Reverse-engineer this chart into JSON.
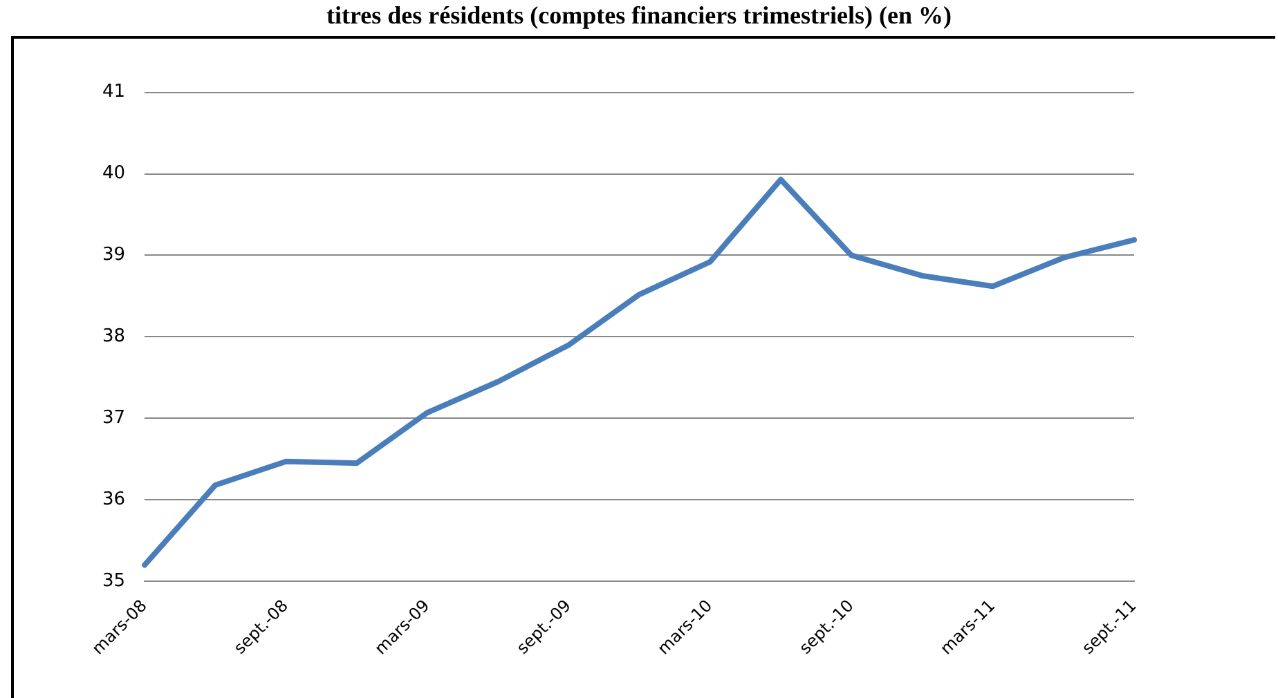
{
  "chart_data": {
    "type": "line",
    "title": "titres des résidents (comptes financiers trimestriels) (en %)",
    "categories": [
      "mars-08",
      null,
      "sept.-08",
      null,
      "mars-09",
      null,
      "sept.-09",
      null,
      "mars-10",
      null,
      "sept.-10",
      null,
      "mars-11",
      null,
      "sept.-11"
    ],
    "series": [
      {
        "color": "#4a7ebb",
        "values": [
          35.2,
          36.18,
          36.47,
          36.45,
          37.07,
          37.45,
          37.9,
          38.52,
          38.92,
          39.93,
          39.0,
          38.75,
          38.62,
          38.97,
          39.19
        ]
      }
    ],
    "ylim": [
      35,
      41
    ],
    "yticks": [
      35,
      36,
      37,
      38,
      39,
      40,
      41
    ],
    "grid": "y",
    "legend": false,
    "marker": "none",
    "line_style": "solid"
  }
}
